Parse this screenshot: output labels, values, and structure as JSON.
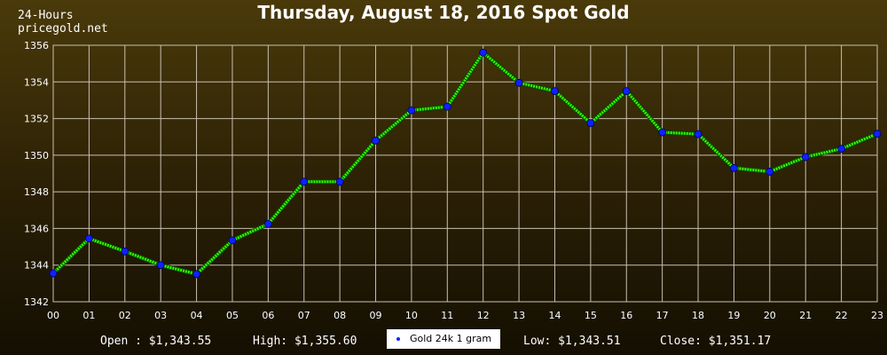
{
  "header": {
    "title": "Thursday, August 18, 2016 Spot Gold",
    "corner_line1": "24-Hours",
    "corner_line2": "pricegold.net"
  },
  "footer": {
    "open": "Open : $1,343.55",
    "high": "High: $1,355.60",
    "low": "Low: $1,343.51",
    "close": "Close: $1,351.17"
  },
  "colors": {
    "line": "#33ff00",
    "marker": "#1020ff",
    "grid": "#c8c0b0"
  },
  "chart_data": {
    "type": "line",
    "title": "Thursday, August 18, 2016 Spot Gold",
    "xlabel": "",
    "ylabel": "",
    "categories": [
      "00",
      "01",
      "02",
      "03",
      "04",
      "05",
      "06",
      "07",
      "08",
      "09",
      "10",
      "11",
      "12",
      "13",
      "14",
      "15",
      "16",
      "17",
      "18",
      "19",
      "20",
      "21",
      "22",
      "23"
    ],
    "series": [
      {
        "name": "Gold 24k 1 gram",
        "values": [
          1343.55,
          1345.45,
          1344.75,
          1344.0,
          1343.51,
          1345.35,
          1346.25,
          1348.55,
          1348.55,
          1350.8,
          1352.45,
          1352.65,
          1355.6,
          1353.95,
          1353.5,
          1351.75,
          1353.5,
          1351.25,
          1351.15,
          1349.3,
          1349.1,
          1349.9,
          1350.35,
          1351.17
        ]
      }
    ],
    "yticks": [
      1342,
      1344,
      1346,
      1348,
      1350,
      1352,
      1354,
      1356
    ],
    "ylim": [
      1342,
      1356
    ],
    "grid": true,
    "legend": "bottom-center"
  }
}
